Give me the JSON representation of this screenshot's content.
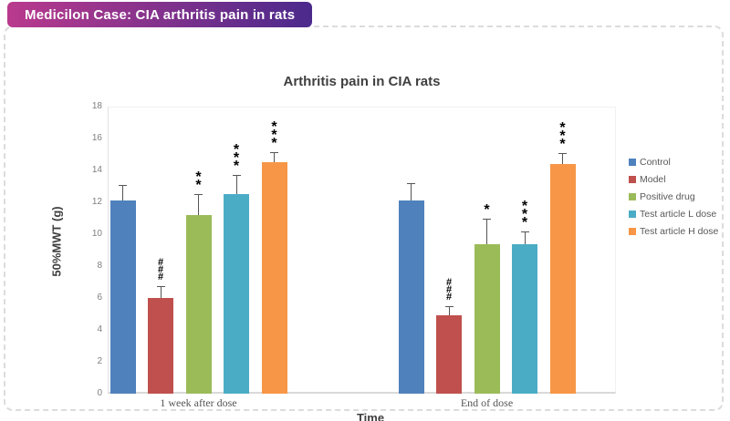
{
  "header": {
    "badge_text": "Medicilon Case: CIA arthritis pain in rats",
    "badge_gradient_left": "#B93A8D",
    "badge_gradient_right": "#4B2A8C"
  },
  "chart_data": {
    "type": "bar",
    "title": "Arthritis pain in CIA rats",
    "xlabel": "Time",
    "ylabel": "50%MWT (g)",
    "ylim": [
      0,
      18
    ],
    "ytick_step": 2,
    "grid": false,
    "legend_position": "right",
    "categories": [
      "1 week after dose",
      "End of dose"
    ],
    "series": [
      {
        "name": "Control",
        "color": "#4F81BD",
        "values": [
          12.1,
          12.1
        ],
        "errors": [
          1.0,
          1.1
        ],
        "sig": [
          "",
          ""
        ]
      },
      {
        "name": "Model",
        "color": "#C0504D",
        "values": [
          6.0,
          4.9
        ],
        "errors": [
          0.75,
          0.6
        ],
        "sig": [
          "###",
          "###"
        ]
      },
      {
        "name": "Positive drug",
        "color": "#9BBB59",
        "values": [
          11.2,
          9.4
        ],
        "errors": [
          1.3,
          1.6
        ],
        "sig": [
          "**",
          "*"
        ]
      },
      {
        "name": "Test article L dose",
        "color": "#4BACC6",
        "values": [
          12.5,
          9.4
        ],
        "errors": [
          1.2,
          0.8
        ],
        "sig": [
          "***",
          "***"
        ]
      },
      {
        "name": "Test article H dose",
        "color": "#F79646",
        "values": [
          14.5,
          14.4
        ],
        "errors": [
          0.65,
          0.7
        ],
        "sig": [
          "***",
          "***"
        ]
      }
    ]
  }
}
